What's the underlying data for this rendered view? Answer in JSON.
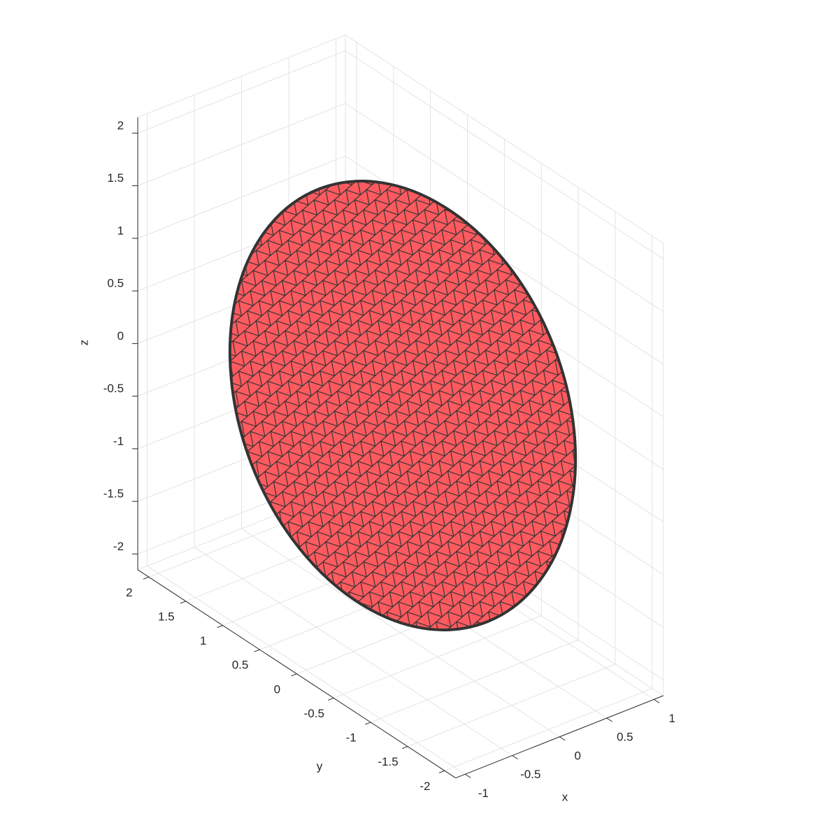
{
  "chart_data": {
    "type": "mesh3d",
    "x_label": "x",
    "y_label": "y",
    "z_label": "z",
    "xlim": [
      -1.1,
      1.1
    ],
    "ylim": [
      -2.15,
      2.15
    ],
    "zlim": [
      -2.15,
      2.15
    ],
    "xticks": [
      -1,
      -0.5,
      0,
      0.5,
      1
    ],
    "yticks": [
      -2,
      -1.5,
      -1,
      -0.5,
      0,
      0.5,
      1,
      1.5,
      2
    ],
    "zticks": [
      -2,
      -1.5,
      -1,
      -0.5,
      0,
      0.5,
      1,
      1.5,
      2
    ],
    "grid": true,
    "color": "#ff5a5f",
    "edgecolor": "#333333"
  }
}
